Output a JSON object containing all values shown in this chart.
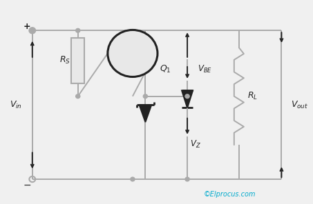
{
  "bg_color": "#f0f0f0",
  "wire_color": "#aaaaaa",
  "dark_color": "#222222",
  "copyright_color": "#00aacc",
  "copyright_text": "©Elprocus.com",
  "figsize": [
    4.53,
    2.96
  ],
  "dpi": 100
}
